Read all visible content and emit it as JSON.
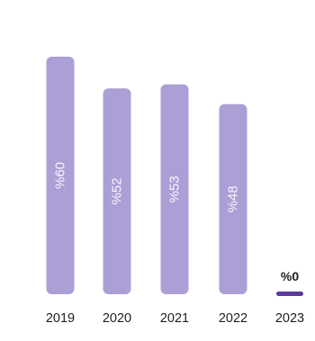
{
  "chart_data": {
    "type": "bar",
    "orientation": "vertical",
    "categories": [
      "2019",
      "2020",
      "2021",
      "2022",
      "2023"
    ],
    "values": [
      60,
      52,
      53,
      48,
      0
    ],
    "data_labels": [
      "%60",
      "%52",
      "%53",
      "%48",
      "%0"
    ],
    "title": "",
    "xlabel": "",
    "ylabel": "",
    "ylim": [
      0,
      60
    ],
    "grid": false,
    "legend": "none",
    "colors": {
      "bar": "#ab9fd6",
      "zero_bar": "#5b3a9b",
      "label_on_bar": "#ffffff",
      "label_zero": "#1d1d1d",
      "tick_label": "#1e1e1e"
    }
  }
}
